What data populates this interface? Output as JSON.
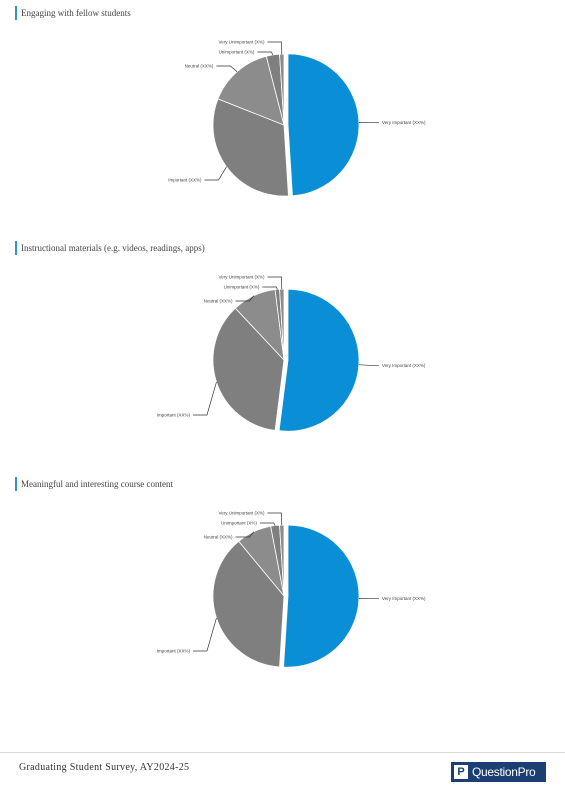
{
  "colors": {
    "accent": "#0a8fd6",
    "gray_main": "#7f7f7f",
    "gray_light": "#8c8c8c",
    "title_bar": "#2f93cf"
  },
  "chart_data": [
    {
      "type": "pie",
      "title": "Engaging with fellow students",
      "labels": [
        "Very Important (XX%)",
        "Important (XX%)",
        "Neutral (XX%)",
        "Unimportant (X%)",
        "Very Unimportant (X%)"
      ],
      "values": [
        49,
        32,
        15,
        3,
        1
      ]
    },
    {
      "type": "pie",
      "title": "Instructional materials (e.g. videos, readings, apps)",
      "labels": [
        "Very Important (XX%)",
        "Important (XX%)",
        "Neutral (XX%)",
        "Unimportant (X%)",
        "Very Unimportant (X%)"
      ],
      "values": [
        52,
        36,
        10,
        1,
        1
      ]
    },
    {
      "type": "pie",
      "title": "Meaningful and interesting course content",
      "labels": [
        "Very Important (XX%)",
        "Important (XX%)",
        "Neutral (XX%)",
        "Unimportant (X%)",
        "Very Unimportant (X%)"
      ],
      "values": [
        51,
        38,
        8,
        2,
        1
      ]
    }
  ],
  "footer": {
    "survey_title": "Graduating Student Survey, AY2024-25",
    "brand_mark": "P",
    "brand_name": "QuestionPro"
  }
}
